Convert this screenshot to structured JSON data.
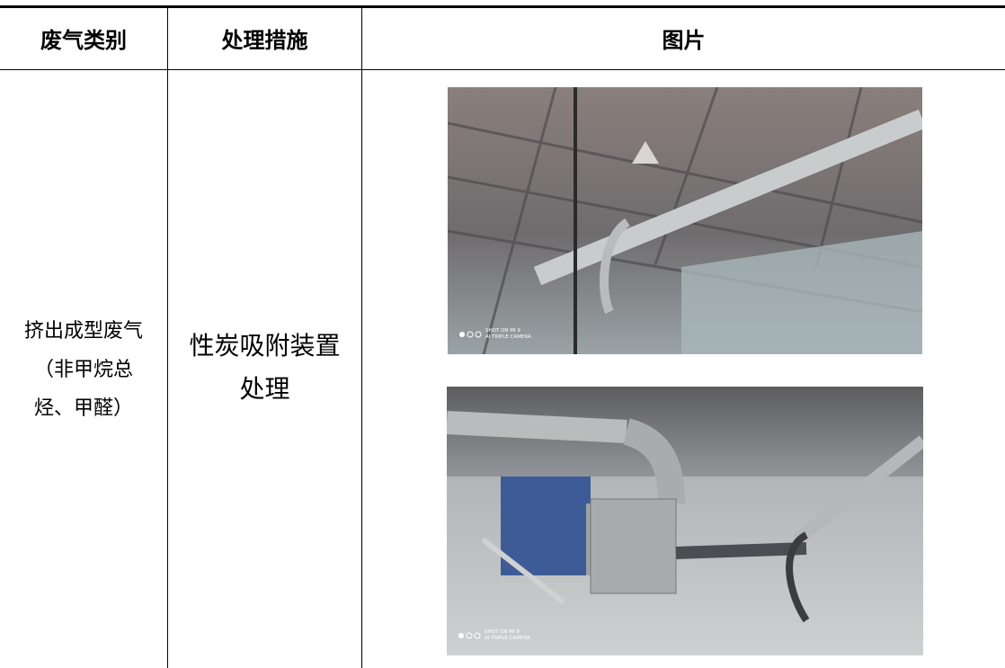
{
  "table": {
    "headers": [
      "废气类别",
      "处理措施",
      "图片"
    ],
    "rows": [
      {
        "category": [
          "挤出成型废气",
          "（非甲烷总",
          "烃、甲醛）"
        ],
        "measure": [
          "性炭吸附装置",
          "处理"
        ],
        "photos": [
          {
            "watermark": [
              "SHOT ON MI 9",
              "AI TRIPLE CAMERA"
            ]
          },
          {
            "watermark": [
              "SHOT ON MI 9",
              "AI TRIPLE CAMERA"
            ]
          }
        ]
      }
    ]
  }
}
